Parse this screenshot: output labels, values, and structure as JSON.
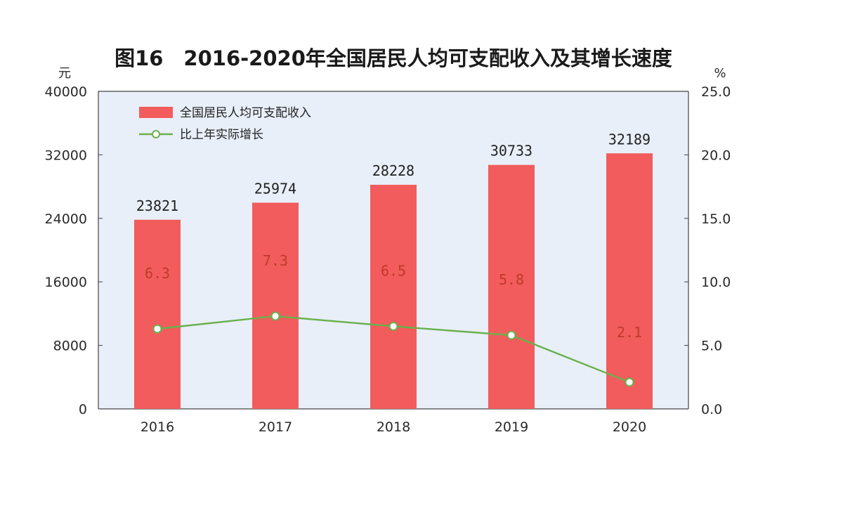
{
  "chart_data": {
    "type": "bar",
    "title": "图16　2016-2020年全国居民人均可支配收入及其增长速度",
    "categories": [
      "2016",
      "2017",
      "2018",
      "2019",
      "2020"
    ],
    "left_axis": {
      "unit": "元",
      "ylim": [
        0,
        40000
      ],
      "ticks": [
        "0",
        "8000",
        "16000",
        "24000",
        "32000",
        "40000"
      ]
    },
    "right_axis": {
      "unit": "%",
      "ylim": [
        0,
        25
      ],
      "ticks": [
        "0.0",
        "5.0",
        "10.0",
        "15.0",
        "20.0",
        "25.0"
      ]
    },
    "series": [
      {
        "name": "全国居民人均可支配收入",
        "type": "bar",
        "axis": "left",
        "color": "#f25c5c",
        "values": [
          23821,
          25974,
          28228,
          30733,
          32189
        ],
        "labels": [
          "23821",
          "25974",
          "28228",
          "30733",
          "32189"
        ]
      },
      {
        "name": "比上年实际增长",
        "type": "line",
        "axis": "right",
        "color": "#6ab04c",
        "values": [
          6.3,
          7.3,
          6.5,
          5.8,
          2.1
        ],
        "labels": [
          "6.3",
          "7.3",
          "6.5",
          "5.8",
          "2.1"
        ]
      }
    ],
    "legend": "top-left",
    "grid": false,
    "plot_background": "#e8eff9"
  }
}
